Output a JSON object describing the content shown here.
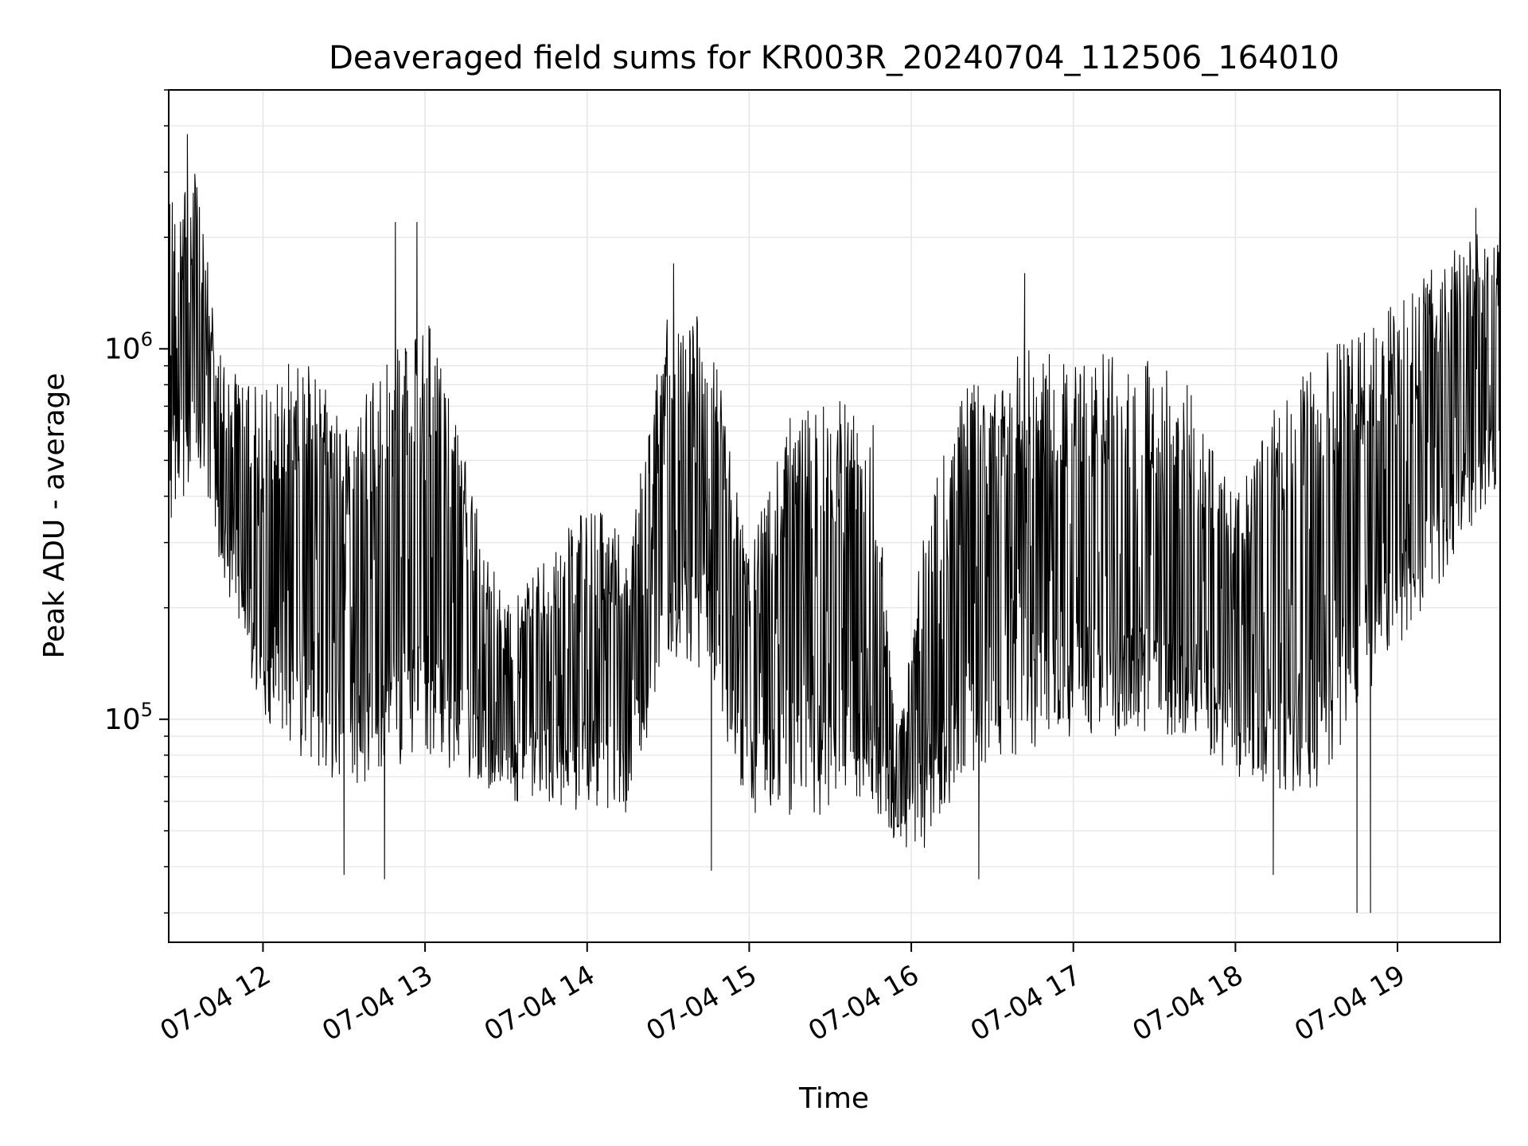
{
  "chart_data": {
    "type": "line",
    "title": "Deaveraged field sums for KR003R_20240704_112506_164010",
    "xlabel": "Time",
    "ylabel": "Peak ADU - average",
    "yscale": "log",
    "ylim": [
      25000,
      5000000
    ],
    "xlim": [
      "2024-07-04 11:25:06",
      "2024-07-04 19:38:00"
    ],
    "grid": true,
    "line_color": "#000000",
    "grid_color": "#e6e6e6",
    "xticks": [
      {
        "t": "2024-07-04 12:00",
        "label": "07-04 12"
      },
      {
        "t": "2024-07-04 13:00",
        "label": "07-04 13"
      },
      {
        "t": "2024-07-04 14:00",
        "label": "07-04 14"
      },
      {
        "t": "2024-07-04 15:00",
        "label": "07-04 15"
      },
      {
        "t": "2024-07-04 16:00",
        "label": "07-04 16"
      },
      {
        "t": "2024-07-04 17:00",
        "label": "07-04 17"
      },
      {
        "t": "2024-07-04 18:00",
        "label": "07-04 18"
      },
      {
        "t": "2024-07-04 19:00",
        "label": "07-04 19"
      }
    ],
    "yticks": [
      {
        "value": 100000,
        "base": "10",
        "exp": "5"
      },
      {
        "value": 1000000,
        "base": "10",
        "exp": "6"
      }
    ],
    "series": [
      {
        "envelope": [
          {
            "t": "2024-07-04 11:25",
            "low": 300000,
            "high": 2500000
          },
          {
            "t": "2024-07-04 11:35",
            "low": 500000,
            "high": 3000000
          },
          {
            "t": "2024-07-04 11:45",
            "low": 250000,
            "high": 900000
          },
          {
            "t": "2024-07-04 12:00",
            "low": 100000,
            "high": 800000
          },
          {
            "t": "2024-07-04 12:15",
            "low": 75000,
            "high": 1000000
          },
          {
            "t": "2024-07-04 12:30",
            "low": 65000,
            "high": 700000
          },
          {
            "t": "2024-07-04 12:45",
            "low": 70000,
            "high": 900000
          },
          {
            "t": "2024-07-04 13:00",
            "low": 80000,
            "high": 1300000
          },
          {
            "t": "2024-07-04 13:15",
            "low": 70000,
            "high": 500000
          },
          {
            "t": "2024-07-04 13:30",
            "low": 60000,
            "high": 200000
          },
          {
            "t": "2024-07-04 13:45",
            "low": 60000,
            "high": 280000
          },
          {
            "t": "2024-07-04 14:00",
            "low": 55000,
            "high": 400000
          },
          {
            "t": "2024-07-04 14:15",
            "low": 55000,
            "high": 300000
          },
          {
            "t": "2024-07-04 14:30",
            "low": 150000,
            "high": 1300000
          },
          {
            "t": "2024-07-04 14:45",
            "low": 130000,
            "high": 1200000
          },
          {
            "t": "2024-07-04 15:00",
            "low": 55000,
            "high": 300000
          },
          {
            "t": "2024-07-04 15:15",
            "low": 55000,
            "high": 700000
          },
          {
            "t": "2024-07-04 15:30",
            "low": 55000,
            "high": 700000
          },
          {
            "t": "2024-07-04 15:45",
            "low": 60000,
            "high": 800000
          },
          {
            "t": "2024-07-04 15:55",
            "low": 45000,
            "high": 90000
          },
          {
            "t": "2024-07-04 16:05",
            "low": 45000,
            "high": 350000
          },
          {
            "t": "2024-07-04 16:20",
            "low": 70000,
            "high": 800000
          },
          {
            "t": "2024-07-04 16:40",
            "low": 80000,
            "high": 1000000
          },
          {
            "t": "2024-07-04 17:00",
            "low": 90000,
            "high": 1000000
          },
          {
            "t": "2024-07-04 17:20",
            "low": 90000,
            "high": 950000
          },
          {
            "t": "2024-07-04 17:40",
            "low": 90000,
            "high": 900000
          },
          {
            "t": "2024-07-04 18:00",
            "low": 70000,
            "high": 400000
          },
          {
            "t": "2024-07-04 18:15",
            "low": 60000,
            "high": 700000
          },
          {
            "t": "2024-07-04 18:30",
            "low": 60000,
            "high": 1000000
          },
          {
            "t": "2024-07-04 18:50",
            "low": 120000,
            "high": 1200000
          },
          {
            "t": "2024-07-04 19:10",
            "low": 200000,
            "high": 1600000
          },
          {
            "t": "2024-07-04 19:25",
            "low": 300000,
            "high": 2000000
          },
          {
            "t": "2024-07-04 19:37",
            "low": 400000,
            "high": 2200000
          }
        ],
        "spikes": [
          {
            "t": "2024-07-04 11:32",
            "value": 3800000
          },
          {
            "t": "2024-07-04 12:49",
            "value": 2200000
          },
          {
            "t": "2024-07-04 12:57",
            "value": 2200000
          },
          {
            "t": "2024-07-04 14:32",
            "value": 1700000
          },
          {
            "t": "2024-07-04 16:42",
            "value": 1600000
          },
          {
            "t": "2024-07-04 19:29",
            "value": 2400000
          },
          {
            "t": "2024-07-04 12:30",
            "value": 38000
          },
          {
            "t": "2024-07-04 12:45",
            "value": 37000
          },
          {
            "t": "2024-07-04 14:46",
            "value": 39000
          },
          {
            "t": "2024-07-04 16:25",
            "value": 37000
          },
          {
            "t": "2024-07-04 18:14",
            "value": 38000
          },
          {
            "t": "2024-07-04 18:45",
            "value": 30000
          },
          {
            "t": "2024-07-04 18:50",
            "value": 30000
          }
        ]
      }
    ]
  }
}
